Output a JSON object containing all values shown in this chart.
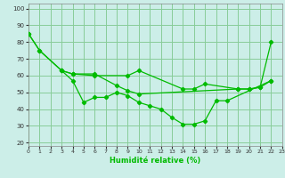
{
  "xlabel": "Humidité relative (%)",
  "xlim": [
    0,
    23
  ],
  "ylim": [
    18,
    103
  ],
  "yticks": [
    20,
    30,
    40,
    50,
    60,
    70,
    80,
    90,
    100
  ],
  "xticks": [
    0,
    1,
    2,
    3,
    4,
    5,
    6,
    7,
    8,
    9,
    10,
    11,
    12,
    13,
    14,
    15,
    16,
    17,
    18,
    19,
    20,
    21,
    22,
    23
  ],
  "bg_color": "#cceee8",
  "grid_color": "#88cc99",
  "line_color": "#00bb00",
  "line1_x": [
    0,
    1,
    3,
    4,
    5,
    6,
    7,
    8,
    9,
    10,
    11,
    12,
    13,
    14,
    15,
    16,
    17,
    18,
    22
  ],
  "line1_y": [
    85,
    75,
    63,
    57,
    44,
    47,
    47,
    50,
    48,
    44,
    42,
    40,
    35,
    31,
    31,
    33,
    45,
    45,
    57
  ],
  "line2_x": [
    3,
    4,
    6,
    8,
    9,
    10,
    19,
    20,
    21,
    22
  ],
  "line2_y": [
    63,
    61,
    61,
    54,
    51,
    49,
    52,
    52,
    53,
    57
  ],
  "line3_x": [
    0,
    1,
    3,
    4,
    6,
    9,
    10,
    14,
    15,
    16,
    19,
    20,
    21,
    22
  ],
  "line3_y": [
    85,
    75,
    63,
    61,
    60,
    60,
    63,
    52,
    52,
    55,
    52,
    52,
    53,
    80
  ]
}
